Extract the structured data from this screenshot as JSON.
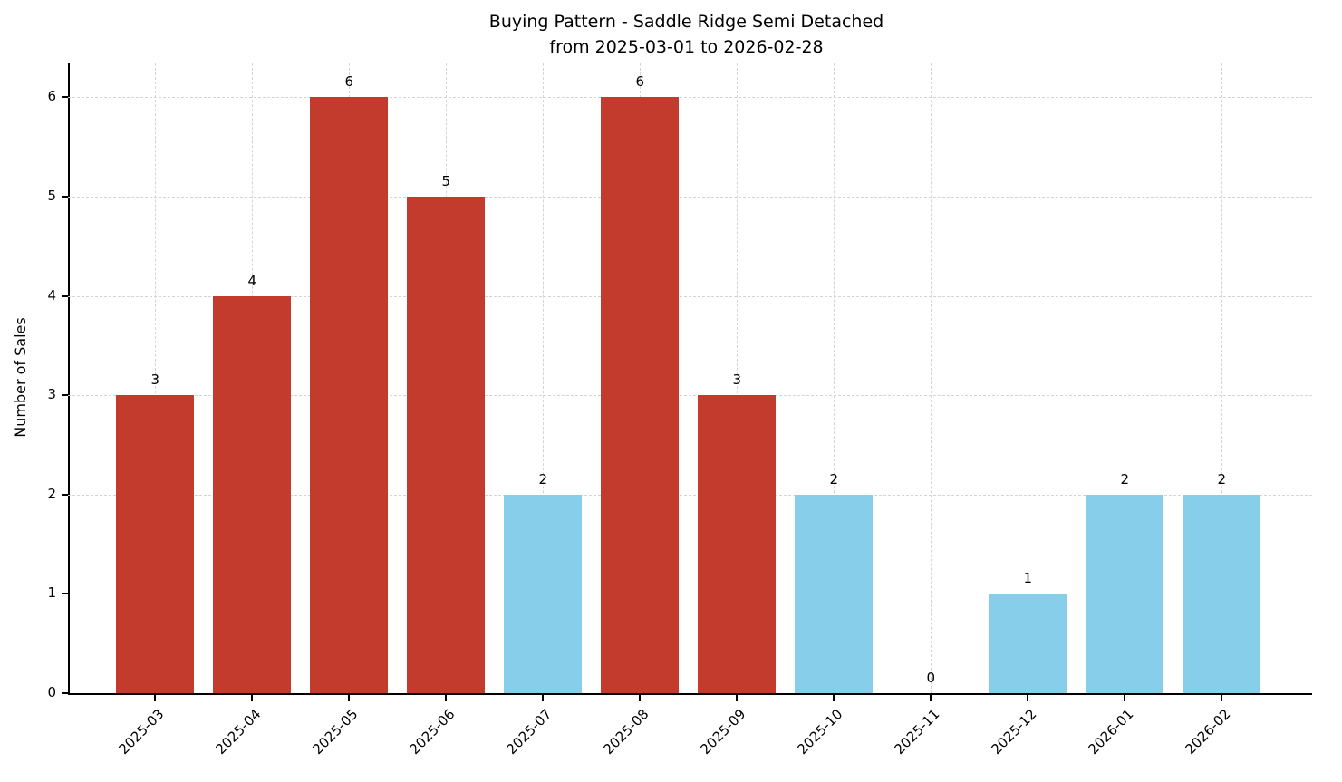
{
  "chart_data": {
    "type": "bar",
    "title": "Buying Pattern - Saddle Ridge Semi Detached",
    "subtitle": "from 2025-03-01 to 2026-02-28",
    "xlabel": "",
    "ylabel": "Number of Sales",
    "categories": [
      "2025-03",
      "2025-04",
      "2025-05",
      "2025-06",
      "2025-07",
      "2025-08",
      "2025-09",
      "2025-10",
      "2025-11",
      "2025-12",
      "2026-01",
      "2026-02"
    ],
    "values": [
      3,
      4,
      6,
      5,
      2,
      6,
      3,
      2,
      0,
      1,
      2,
      2
    ],
    "bar_colors": [
      "#c23b2c",
      "#c23b2c",
      "#c23b2c",
      "#c23b2c",
      "#87ceeb",
      "#c23b2c",
      "#c23b2c",
      "#87ceeb",
      "#87ceeb",
      "#87ceeb",
      "#87ceeb",
      "#87ceeb"
    ],
    "color_legend": {
      "red": "#c23b2c",
      "skyblue": "#87ceeb"
    },
    "yticks": [
      0,
      1,
      2,
      3,
      4,
      5,
      6
    ],
    "ylim": [
      0,
      6.34
    ],
    "grid": "dashed-both-axes",
    "legend_position": "none",
    "value_labels_shown": true
  }
}
